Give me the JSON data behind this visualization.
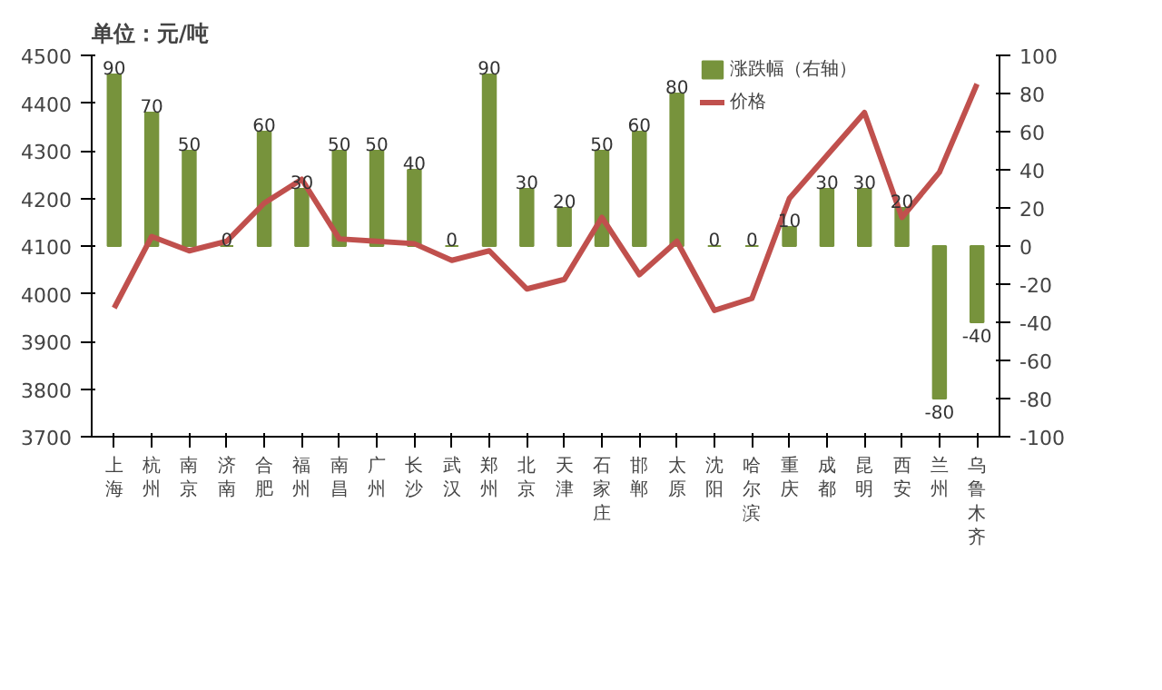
{
  "chart_data": {
    "type": "bar",
    "title": "单位：元/吨",
    "categories": [
      "上海",
      "杭州",
      "南京",
      "济南",
      "合肥",
      "福州",
      "南昌",
      "广州",
      "长沙",
      "武汉",
      "郑州",
      "北京",
      "天津",
      "石家庄",
      "邯郸",
      "太原",
      "沈阳",
      "哈尔滨",
      "重庆",
      "成都",
      "昆明",
      "西安",
      "兰州",
      "乌鲁木齐"
    ],
    "series": [
      {
        "name": "涨跌幅（右轴）",
        "axis": "y2",
        "color": "#77933c",
        "data_labels": true,
        "values": [
          90,
          70,
          50,
          0,
          60,
          30,
          50,
          50,
          40,
          0,
          90,
          30,
          20,
          50,
          60,
          80,
          0,
          0,
          10,
          30,
          30,
          20,
          -80,
          -40
        ]
      },
      {
        "name": "价格",
        "type": "line",
        "color": "#c0504d",
        "values": [
          3970,
          4120,
          4090,
          4110,
          4190,
          4240,
          4115,
          4110,
          4105,
          4070,
          4090,
          4010,
          4030,
          4160,
          4040,
          4110,
          3965,
          3990,
          4200,
          4290,
          4380,
          4160,
          4255,
          4440
        ]
      }
    ],
    "ylim": [
      3700,
      4500
    ],
    "yticks": [
      3700,
      3800,
      3900,
      4000,
      4100,
      4200,
      4300,
      4400,
      4500
    ],
    "y2lim": [
      -100,
      100
    ],
    "y2ticks": [
      -100,
      -80,
      -60,
      -40,
      -20,
      0,
      20,
      40,
      60,
      80,
      100
    ],
    "legend": "top",
    "grid": false
  }
}
